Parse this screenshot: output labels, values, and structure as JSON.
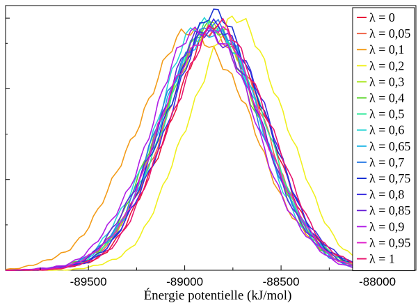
{
  "chart_data": {
    "type": "line",
    "xlabel": "Énergie potentielle (kJ/mol)",
    "ylabel": "",
    "xlim": [
      -89930,
      -87800
    ],
    "ylim": [
      0,
      1.05
    ],
    "xticks": [
      -89500,
      -89000,
      -88500,
      -88000
    ],
    "xtick_labels": [
      "-89500",
      "-89000",
      "-88500",
      "-88000"
    ],
    "y_ticks": [
      0.36,
      0.72,
      1.0
    ],
    "legend_position": "right",
    "grid": false,
    "series": [
      {
        "name": "λ = 0",
        "color": "#e8163a",
        "mu": -88830,
        "sigma": 260,
        "peak": 0.94,
        "phase": 0.0
      },
      {
        "name": "λ = 0,05",
        "color": "#f0664a",
        "mu": -88850,
        "sigma": 262,
        "peak": 0.95,
        "phase": 0.7
      },
      {
        "name": "λ = 0,1",
        "color": "#f39c19",
        "mu": -88950,
        "sigma": 300,
        "peak": 0.94,
        "phase": 1.4
      },
      {
        "name": "λ = 0,2",
        "color": "#f0f01e",
        "mu": -88730,
        "sigma": 255,
        "peak": 0.98,
        "phase": 2.1
      },
      {
        "name": "λ = 0,3",
        "color": "#a8e61c",
        "mu": -88860,
        "sigma": 262,
        "peak": 0.96,
        "phase": 2.8
      },
      {
        "name": "λ = 0,4",
        "color": "#5ed62c",
        "mu": -88870,
        "sigma": 265,
        "peak": 0.95,
        "phase": 3.5
      },
      {
        "name": "λ = 0,5",
        "color": "#2ee89a",
        "mu": -88850,
        "sigma": 262,
        "peak": 0.97,
        "phase": 4.2
      },
      {
        "name": "λ = 0,6",
        "color": "#2ad6d6",
        "mu": -88880,
        "sigma": 263,
        "peak": 0.99,
        "phase": 4.9
      },
      {
        "name": "λ = 0,65",
        "color": "#1eb6e6",
        "mu": -88860,
        "sigma": 262,
        "peak": 0.96,
        "phase": 5.6
      },
      {
        "name": "λ = 0,7",
        "color": "#2f7ee6",
        "mu": -88870,
        "sigma": 262,
        "peak": 0.97,
        "phase": 6.3
      },
      {
        "name": "λ = 0,75",
        "color": "#1a32d4",
        "mu": -88840,
        "sigma": 262,
        "peak": 1.0,
        "phase": 7.0
      },
      {
        "name": "λ = 0,8",
        "color": "#3a2ee0",
        "mu": -88830,
        "sigma": 264,
        "peak": 0.97,
        "phase": 7.7
      },
      {
        "name": "λ = 0,85",
        "color": "#6a22d6",
        "mu": -88870,
        "sigma": 266,
        "peak": 0.95,
        "phase": 8.4
      },
      {
        "name": "λ = 0,9",
        "color": "#b01ee6",
        "mu": -88900,
        "sigma": 266,
        "peak": 0.97,
        "phase": 9.1
      },
      {
        "name": "λ = 0,95",
        "color": "#e01ecc",
        "mu": -88860,
        "sigma": 264,
        "peak": 0.96,
        "phase": 9.8
      },
      {
        "name": "λ = 1",
        "color": "#e8146e",
        "mu": -88820,
        "sigma": 262,
        "peak": 0.96,
        "phase": 10.5
      }
    ]
  }
}
